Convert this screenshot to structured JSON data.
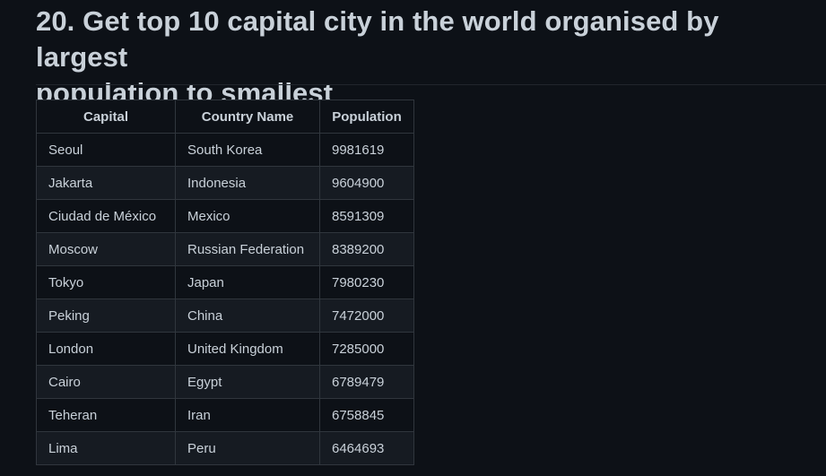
{
  "heading": {
    "line1": "20. Get top 10 capital city in the world organised by largest",
    "line2": "population to smallest"
  },
  "table": {
    "columns": [
      "Capital",
      "Country Name",
      "Population"
    ],
    "rows": [
      [
        "Seoul",
        "South Korea",
        "9981619"
      ],
      [
        "Jakarta",
        "Indonesia",
        "9604900"
      ],
      [
        "Ciudad de México",
        "Mexico",
        "8591309"
      ],
      [
        "Moscow",
        "Russian Federation",
        "8389200"
      ],
      [
        "Tokyo",
        "Japan",
        "7980230"
      ],
      [
        "Peking",
        "China",
        "7472000"
      ],
      [
        "London",
        "United Kingdom",
        "7285000"
      ],
      [
        "Cairo",
        "Egypt",
        "6789479"
      ],
      [
        "Teheran",
        "Iran",
        "6758845"
      ],
      [
        "Lima",
        "Peru",
        "6464693"
      ]
    ]
  },
  "colors": {
    "background": "#0d1117",
    "row_alt": "#161b22",
    "border": "#30363d",
    "text": "#c9d1d9"
  }
}
